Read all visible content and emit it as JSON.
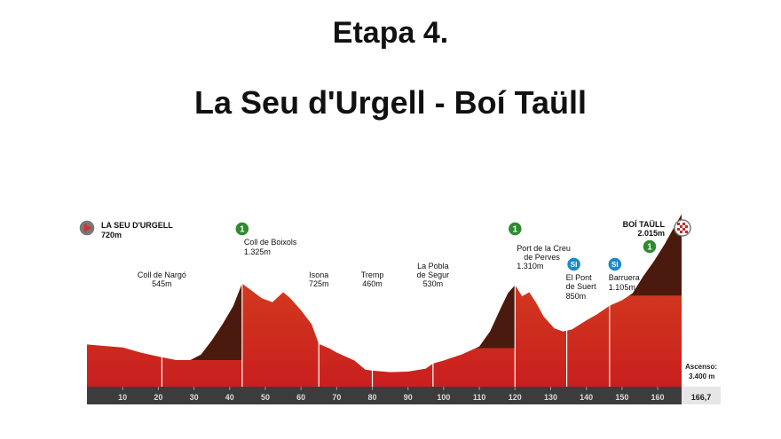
{
  "header": {
    "stage": "Etapa 4.",
    "route": "La Seu d'Urgell - Boí Taüll"
  },
  "chart_data": {
    "type": "area",
    "x_unit": "km",
    "y_unit": "m",
    "xlim": [
      0,
      166.7
    ],
    "ylim": [
      300,
      2100
    ],
    "x_ticks": [
      10,
      20,
      30,
      40,
      50,
      60,
      70,
      80,
      90,
      100,
      110,
      120,
      130,
      140,
      150,
      160
    ],
    "x_end_label": "166,7",
    "total_climb_label": "Ascenso:",
    "total_climb_value": "3.400 m",
    "profile": [
      [
        0,
        720
      ],
      [
        5,
        705
      ],
      [
        10,
        690
      ],
      [
        15,
        640
      ],
      [
        20,
        600
      ],
      [
        25,
        565
      ],
      [
        29,
        565
      ],
      [
        32,
        620
      ],
      [
        35,
        760
      ],
      [
        38,
        920
      ],
      [
        41,
        1100
      ],
      [
        43.5,
        1325
      ],
      [
        46,
        1260
      ],
      [
        49,
        1180
      ],
      [
        52,
        1140
      ],
      [
        55,
        1240
      ],
      [
        57,
        1180
      ],
      [
        60,
        1060
      ],
      [
        63,
        920
      ],
      [
        65,
        725
      ],
      [
        68,
        680
      ],
      [
        70,
        640
      ],
      [
        75,
        560
      ],
      [
        78,
        470
      ],
      [
        80,
        460
      ],
      [
        85,
        445
      ],
      [
        90,
        450
      ],
      [
        95,
        480
      ],
      [
        97,
        530
      ],
      [
        100,
        560
      ],
      [
        105,
        620
      ],
      [
        110,
        700
      ],
      [
        113,
        850
      ],
      [
        116,
        1080
      ],
      [
        118,
        1230
      ],
      [
        120,
        1310
      ],
      [
        122,
        1200
      ],
      [
        124,
        1240
      ],
      [
        126,
        1130
      ],
      [
        128,
        1000
      ],
      [
        131,
        880
      ],
      [
        133.5,
        850
      ],
      [
        136,
        870
      ],
      [
        140,
        960
      ],
      [
        143,
        1020
      ],
      [
        146.5,
        1105
      ],
      [
        150,
        1160
      ],
      [
        153,
        1230
      ],
      [
        156,
        1400
      ],
      [
        159,
        1550
      ],
      [
        162,
        1720
      ],
      [
        164.5,
        1880
      ],
      [
        166.7,
        2015
      ]
    ],
    "climbs": [
      {
        "x_start": 29,
        "x_end": 43.5
      },
      {
        "x_start": 109,
        "x_end": 120
      },
      {
        "x_start": 152,
        "x_end": 166.7
      }
    ],
    "points": [
      {
        "name": "LA SEU D'URGELL",
        "alt": "720m",
        "x": 0,
        "y": 720,
        "kind": "start"
      },
      {
        "name": "Coll de Nargó",
        "alt": "545m",
        "x": 21,
        "y": 560,
        "kind": "town"
      },
      {
        "name": "Coll de Boixols",
        "alt": "1.325m",
        "x": 43.5,
        "y": 1325,
        "kind": "kom",
        "kom_cat": "1"
      },
      {
        "name": "Isona",
        "alt": "725m",
        "x": 65,
        "y": 725,
        "kind": "town"
      },
      {
        "name": "Tremp",
        "alt": "460m",
        "x": 80,
        "y": 460,
        "kind": "town"
      },
      {
        "name": "La Pobla de Segur",
        "alt": "530m",
        "x": 97,
        "y": 530,
        "kind": "town"
      },
      {
        "name": "Port de la Creu de Perves",
        "alt": "1.310m",
        "x": 120,
        "y": 1310,
        "kind": "kom",
        "kom_cat": "1"
      },
      {
        "name": "El Pont de Suert",
        "alt": "850m",
        "x": 134.5,
        "y": 850,
        "kind": "sprint",
        "sprint_label": "SI"
      },
      {
        "name": "Barruera",
        "alt": "1.105m",
        "x": 146.5,
        "y": 1105,
        "kind": "sprint",
        "sprint_label": "SI"
      },
      {
        "name": "BOÍ TAÜLL",
        "alt": "2.015m",
        "x": 166.7,
        "y": 2015,
        "kind": "finish",
        "kom_cat": "1"
      }
    ],
    "colors": {
      "profile_top": "#d94a1c",
      "profile_bottom": "#c91f1f",
      "climb": "#4a1a0e",
      "axis_bar": "#3c3c3c",
      "kom": "#2e8b2e",
      "sprint": "#1e88c8",
      "start": "#d32f2f"
    }
  }
}
